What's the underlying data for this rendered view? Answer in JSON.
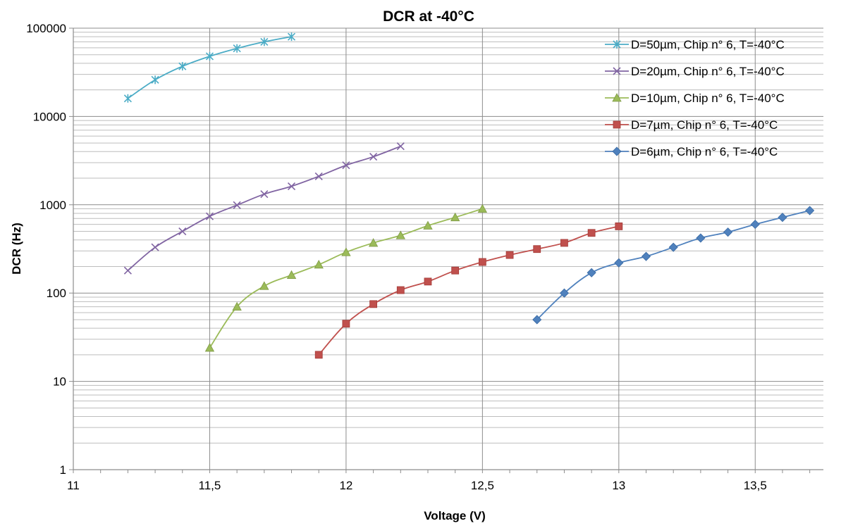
{
  "chart_data": {
    "type": "line",
    "title": "DCR at -40°C",
    "xlabel": "Voltage (V)",
    "ylabel": "DCR (Hz)",
    "xlim": [
      11,
      13.75
    ],
    "ylim": [
      1,
      100000
    ],
    "yscale": "log",
    "grid": true,
    "legend_position": "top-right",
    "x_ticks": [
      "11",
      "11,5",
      "12",
      "12,5",
      "13",
      "13,5"
    ],
    "x_tick_values": [
      11,
      11.5,
      12,
      12.5,
      13,
      13.5
    ],
    "y_ticks": [
      "1",
      "10",
      "100",
      "1000",
      "10000",
      "100000"
    ],
    "y_tick_values": [
      1,
      10,
      100,
      1000,
      10000,
      100000
    ],
    "series": [
      {
        "name": "D=50µm, Chip n° 6, T=-40°C",
        "color": "#4bacc6",
        "marker": "asterisk",
        "x": [
          11.2,
          11.3,
          11.4,
          11.5,
          11.6,
          11.7,
          11.8
        ],
        "y": [
          16000,
          26000,
          37000,
          48000,
          59000,
          70000,
          80000
        ]
      },
      {
        "name": "D=20µm, Chip n° 6, T=-40°C",
        "color": "#8064a2",
        "marker": "x",
        "x": [
          11.2,
          11.3,
          11.4,
          11.5,
          11.6,
          11.7,
          11.8,
          11.9,
          12.0,
          12.1,
          12.2
        ],
        "y": [
          180,
          330,
          500,
          740,
          990,
          1320,
          1620,
          2100,
          2800,
          3500,
          4600
        ]
      },
      {
        "name": "D=10µm, Chip n° 6, T=-40°C",
        "color": "#9bbb59",
        "marker": "triangle",
        "x": [
          11.5,
          11.6,
          11.7,
          11.8,
          11.9,
          12.0,
          12.1,
          12.2,
          12.3,
          12.4,
          12.5
        ],
        "y": [
          24,
          70,
          120,
          160,
          210,
          290,
          370,
          450,
          580,
          720,
          900
        ]
      },
      {
        "name": "D=7µm, Chip n° 6, T=-40°C",
        "color": "#c0504d",
        "marker": "square",
        "x": [
          11.9,
          12.0,
          12.1,
          12.2,
          12.3,
          12.4,
          12.5,
          12.6,
          12.7,
          12.8,
          12.9,
          13.0
        ],
        "y": [
          20,
          45,
          75,
          108,
          135,
          180,
          225,
          270,
          315,
          370,
          480,
          570
        ]
      },
      {
        "name": "D=6µm, Chip n° 6, T=-40°C",
        "color": "#4f81bd",
        "marker": "diamond",
        "x": [
          12.7,
          12.8,
          12.9,
          13.0,
          13.1,
          13.2,
          13.3,
          13.4,
          13.5,
          13.6,
          13.7
        ],
        "y": [
          50,
          100,
          170,
          220,
          260,
          330,
          420,
          490,
          600,
          720,
          860
        ]
      }
    ]
  }
}
